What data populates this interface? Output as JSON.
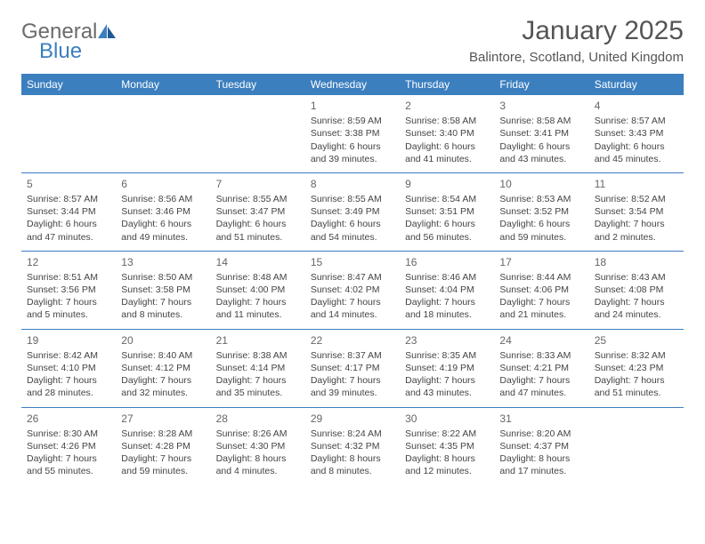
{
  "logo": {
    "text_gray": "General",
    "text_blue": "Blue"
  },
  "title": "January 2025",
  "subtitle": "Balintore, Scotland, United Kingdom",
  "colors": {
    "header_bg": "#3c7fbf",
    "header_text": "#ffffff",
    "border": "#3c7fbf",
    "body_text": "#444444",
    "title_text": "#555555",
    "logo_gray": "#6b6b6b",
    "background": "#ffffff"
  },
  "typography": {
    "title_fontsize": 30,
    "subtitle_fontsize": 15,
    "dayheader_fontsize": 12,
    "daynum_fontsize": 12,
    "cell_fontsize": 10.5
  },
  "day_headers": [
    "Sunday",
    "Monday",
    "Tuesday",
    "Wednesday",
    "Thursday",
    "Friday",
    "Saturday"
  ],
  "weeks": [
    [
      {
        "num": "",
        "lines": []
      },
      {
        "num": "",
        "lines": []
      },
      {
        "num": "",
        "lines": []
      },
      {
        "num": "1",
        "lines": [
          "Sunrise: 8:59 AM",
          "Sunset: 3:38 PM",
          "Daylight: 6 hours",
          "and 39 minutes."
        ]
      },
      {
        "num": "2",
        "lines": [
          "Sunrise: 8:58 AM",
          "Sunset: 3:40 PM",
          "Daylight: 6 hours",
          "and 41 minutes."
        ]
      },
      {
        "num": "3",
        "lines": [
          "Sunrise: 8:58 AM",
          "Sunset: 3:41 PM",
          "Daylight: 6 hours",
          "and 43 minutes."
        ]
      },
      {
        "num": "4",
        "lines": [
          "Sunrise: 8:57 AM",
          "Sunset: 3:43 PM",
          "Daylight: 6 hours",
          "and 45 minutes."
        ]
      }
    ],
    [
      {
        "num": "5",
        "lines": [
          "Sunrise: 8:57 AM",
          "Sunset: 3:44 PM",
          "Daylight: 6 hours",
          "and 47 minutes."
        ]
      },
      {
        "num": "6",
        "lines": [
          "Sunrise: 8:56 AM",
          "Sunset: 3:46 PM",
          "Daylight: 6 hours",
          "and 49 minutes."
        ]
      },
      {
        "num": "7",
        "lines": [
          "Sunrise: 8:55 AM",
          "Sunset: 3:47 PM",
          "Daylight: 6 hours",
          "and 51 minutes."
        ]
      },
      {
        "num": "8",
        "lines": [
          "Sunrise: 8:55 AM",
          "Sunset: 3:49 PM",
          "Daylight: 6 hours",
          "and 54 minutes."
        ]
      },
      {
        "num": "9",
        "lines": [
          "Sunrise: 8:54 AM",
          "Sunset: 3:51 PM",
          "Daylight: 6 hours",
          "and 56 minutes."
        ]
      },
      {
        "num": "10",
        "lines": [
          "Sunrise: 8:53 AM",
          "Sunset: 3:52 PM",
          "Daylight: 6 hours",
          "and 59 minutes."
        ]
      },
      {
        "num": "11",
        "lines": [
          "Sunrise: 8:52 AM",
          "Sunset: 3:54 PM",
          "Daylight: 7 hours",
          "and 2 minutes."
        ]
      }
    ],
    [
      {
        "num": "12",
        "lines": [
          "Sunrise: 8:51 AM",
          "Sunset: 3:56 PM",
          "Daylight: 7 hours",
          "and 5 minutes."
        ]
      },
      {
        "num": "13",
        "lines": [
          "Sunrise: 8:50 AM",
          "Sunset: 3:58 PM",
          "Daylight: 7 hours",
          "and 8 minutes."
        ]
      },
      {
        "num": "14",
        "lines": [
          "Sunrise: 8:48 AM",
          "Sunset: 4:00 PM",
          "Daylight: 7 hours",
          "and 11 minutes."
        ]
      },
      {
        "num": "15",
        "lines": [
          "Sunrise: 8:47 AM",
          "Sunset: 4:02 PM",
          "Daylight: 7 hours",
          "and 14 minutes."
        ]
      },
      {
        "num": "16",
        "lines": [
          "Sunrise: 8:46 AM",
          "Sunset: 4:04 PM",
          "Daylight: 7 hours",
          "and 18 minutes."
        ]
      },
      {
        "num": "17",
        "lines": [
          "Sunrise: 8:44 AM",
          "Sunset: 4:06 PM",
          "Daylight: 7 hours",
          "and 21 minutes."
        ]
      },
      {
        "num": "18",
        "lines": [
          "Sunrise: 8:43 AM",
          "Sunset: 4:08 PM",
          "Daylight: 7 hours",
          "and 24 minutes."
        ]
      }
    ],
    [
      {
        "num": "19",
        "lines": [
          "Sunrise: 8:42 AM",
          "Sunset: 4:10 PM",
          "Daylight: 7 hours",
          "and 28 minutes."
        ]
      },
      {
        "num": "20",
        "lines": [
          "Sunrise: 8:40 AM",
          "Sunset: 4:12 PM",
          "Daylight: 7 hours",
          "and 32 minutes."
        ]
      },
      {
        "num": "21",
        "lines": [
          "Sunrise: 8:38 AM",
          "Sunset: 4:14 PM",
          "Daylight: 7 hours",
          "and 35 minutes."
        ]
      },
      {
        "num": "22",
        "lines": [
          "Sunrise: 8:37 AM",
          "Sunset: 4:17 PM",
          "Daylight: 7 hours",
          "and 39 minutes."
        ]
      },
      {
        "num": "23",
        "lines": [
          "Sunrise: 8:35 AM",
          "Sunset: 4:19 PM",
          "Daylight: 7 hours",
          "and 43 minutes."
        ]
      },
      {
        "num": "24",
        "lines": [
          "Sunrise: 8:33 AM",
          "Sunset: 4:21 PM",
          "Daylight: 7 hours",
          "and 47 minutes."
        ]
      },
      {
        "num": "25",
        "lines": [
          "Sunrise: 8:32 AM",
          "Sunset: 4:23 PM",
          "Daylight: 7 hours",
          "and 51 minutes."
        ]
      }
    ],
    [
      {
        "num": "26",
        "lines": [
          "Sunrise: 8:30 AM",
          "Sunset: 4:26 PM",
          "Daylight: 7 hours",
          "and 55 minutes."
        ]
      },
      {
        "num": "27",
        "lines": [
          "Sunrise: 8:28 AM",
          "Sunset: 4:28 PM",
          "Daylight: 7 hours",
          "and 59 minutes."
        ]
      },
      {
        "num": "28",
        "lines": [
          "Sunrise: 8:26 AM",
          "Sunset: 4:30 PM",
          "Daylight: 8 hours",
          "and 4 minutes."
        ]
      },
      {
        "num": "29",
        "lines": [
          "Sunrise: 8:24 AM",
          "Sunset: 4:32 PM",
          "Daylight: 8 hours",
          "and 8 minutes."
        ]
      },
      {
        "num": "30",
        "lines": [
          "Sunrise: 8:22 AM",
          "Sunset: 4:35 PM",
          "Daylight: 8 hours",
          "and 12 minutes."
        ]
      },
      {
        "num": "31",
        "lines": [
          "Sunrise: 8:20 AM",
          "Sunset: 4:37 PM",
          "Daylight: 8 hours",
          "and 17 minutes."
        ]
      },
      {
        "num": "",
        "lines": []
      }
    ]
  ]
}
